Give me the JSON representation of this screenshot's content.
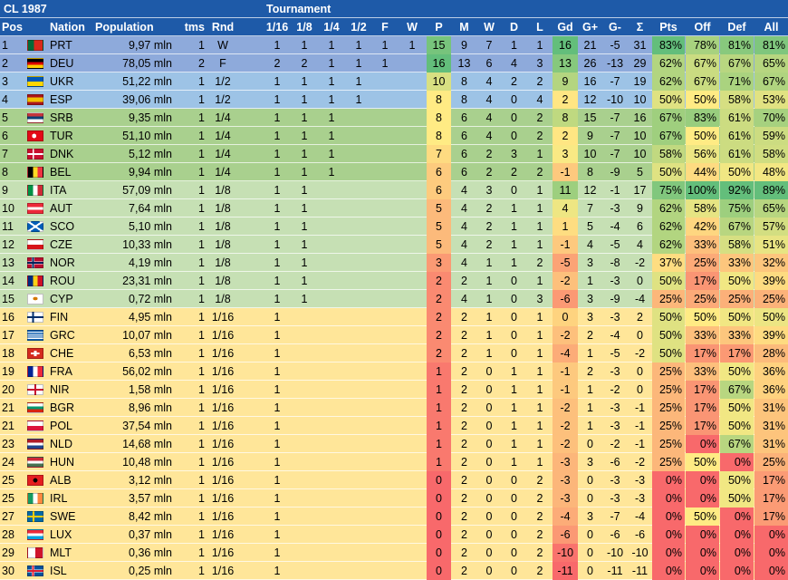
{
  "title": "CL 1987",
  "tournament_label": "Tournament",
  "columns": {
    "pos": "Pos",
    "nation": "Nation",
    "population": "Population",
    "tms": "tms",
    "rnd": "Rnd",
    "r16": "1/16",
    "r8": "1/8",
    "r4": "1/4",
    "r2": "1/2",
    "f": "F",
    "w": "W",
    "p": "P",
    "m": "M",
    "wins": "W",
    "d": "D",
    "l": "L",
    "gd": "Gd",
    "gp": "G+",
    "gm": "G-",
    "sigma": "Σ",
    "pts": "Pts",
    "off": "Off",
    "def": "Def",
    "all": "All"
  },
  "colors": {
    "header": "#1e5aa8",
    "tier_final": "#8eaadb",
    "tier_semi": "#9dc3e6",
    "tier_quarter": "#a9d08e",
    "tier_eighth": "#c6e0b4",
    "tier_sixteenth": "#ffe699",
    "good": "#63be7b",
    "mid": "#ffeb84",
    "bad": "#f8696b"
  },
  "rows": [
    {
      "pos": "1",
      "nation": "PRT",
      "population": "9,97 mln",
      "tms": "1",
      "rnd": "W",
      "r16": "1",
      "r8": "1",
      "r4": "1",
      "r2": "1",
      "f": "1",
      "w": "1",
      "p": "15",
      "m": "9",
      "wins": "7",
      "d": "1",
      "l": "1",
      "gd": "16",
      "gp": "21",
      "gm": "-5",
      "sigma": "31",
      "pts": "83%",
      "off": "78%",
      "def": "81%",
      "all": "81%",
      "flag": "PRT"
    },
    {
      "pos": "2",
      "nation": "DEU",
      "population": "78,05 mln",
      "tms": "2",
      "rnd": "F",
      "r16": "2",
      "r8": "2",
      "r4": "1",
      "r2": "1",
      "f": "1",
      "w": "",
      "p": "16",
      "m": "13",
      "wins": "6",
      "d": "4",
      "l": "3",
      "gd": "13",
      "gp": "26",
      "gm": "-13",
      "sigma": "29",
      "pts": "62%",
      "off": "67%",
      "def": "67%",
      "all": "65%",
      "flag": "DEU"
    },
    {
      "pos": "3",
      "nation": "UKR",
      "population": "51,22 mln",
      "tms": "1",
      "rnd": "1/2",
      "r16": "1",
      "r8": "1",
      "r4": "1",
      "r2": "1",
      "f": "",
      "w": "",
      "p": "10",
      "m": "8",
      "wins": "4",
      "d": "2",
      "l": "2",
      "gd": "9",
      "gp": "16",
      "gm": "-7",
      "sigma": "19",
      "pts": "62%",
      "off": "67%",
      "def": "71%",
      "all": "67%",
      "flag": "UKR"
    },
    {
      "pos": "4",
      "nation": "ESP",
      "population": "39,06 mln",
      "tms": "1",
      "rnd": "1/2",
      "r16": "1",
      "r8": "1",
      "r4": "1",
      "r2": "1",
      "f": "",
      "w": "",
      "p": "8",
      "m": "8",
      "wins": "4",
      "d": "0",
      "l": "4",
      "gd": "2",
      "gp": "12",
      "gm": "-10",
      "sigma": "10",
      "pts": "50%",
      "off": "50%",
      "def": "58%",
      "all": "53%",
      "flag": "ESP"
    },
    {
      "pos": "5",
      "nation": "SRB",
      "population": "9,35 mln",
      "tms": "1",
      "rnd": "1/4",
      "r16": "1",
      "r8": "1",
      "r4": "1",
      "r2": "",
      "f": "",
      "w": "",
      "p": "8",
      "m": "6",
      "wins": "4",
      "d": "0",
      "l": "2",
      "gd": "8",
      "gp": "15",
      "gm": "-7",
      "sigma": "16",
      "pts": "67%",
      "off": "83%",
      "def": "61%",
      "all": "70%",
      "flag": "SRB"
    },
    {
      "pos": "6",
      "nation": "TUR",
      "population": "51,10 mln",
      "tms": "1",
      "rnd": "1/4",
      "r16": "1",
      "r8": "1",
      "r4": "1",
      "r2": "",
      "f": "",
      "w": "",
      "p": "8",
      "m": "6",
      "wins": "4",
      "d": "0",
      "l": "2",
      "gd": "2",
      "gp": "9",
      "gm": "-7",
      "sigma": "10",
      "pts": "67%",
      "off": "50%",
      "def": "61%",
      "all": "59%",
      "flag": "TUR"
    },
    {
      "pos": "7",
      "nation": "DNK",
      "population": "5,12 mln",
      "tms": "1",
      "rnd": "1/4",
      "r16": "1",
      "r8": "1",
      "r4": "1",
      "r2": "",
      "f": "",
      "w": "",
      "p": "7",
      "m": "6",
      "wins": "2",
      "d": "3",
      "l": "1",
      "gd": "3",
      "gp": "10",
      "gm": "-7",
      "sigma": "10",
      "pts": "58%",
      "off": "56%",
      "def": "61%",
      "all": "58%",
      "flag": "DNK"
    },
    {
      "pos": "8",
      "nation": "BEL",
      "population": "9,94 mln",
      "tms": "1",
      "rnd": "1/4",
      "r16": "1",
      "r8": "1",
      "r4": "1",
      "r2": "",
      "f": "",
      "w": "",
      "p": "6",
      "m": "6",
      "wins": "2",
      "d": "2",
      "l": "2",
      "gd": "-1",
      "gp": "8",
      "gm": "-9",
      "sigma": "5",
      "pts": "50%",
      "off": "44%",
      "def": "50%",
      "all": "48%",
      "flag": "BEL"
    },
    {
      "pos": "9",
      "nation": "ITA",
      "population": "57,09 mln",
      "tms": "1",
      "rnd": "1/8",
      "r16": "1",
      "r8": "1",
      "r4": "",
      "r2": "",
      "f": "",
      "w": "",
      "p": "6",
      "m": "4",
      "wins": "3",
      "d": "0",
      "l": "1",
      "gd": "11",
      "gp": "12",
      "gm": "-1",
      "sigma": "17",
      "pts": "75%",
      "off": "100%",
      "def": "92%",
      "all": "89%",
      "flag": "ITA"
    },
    {
      "pos": "10",
      "nation": "AUT",
      "population": "7,64 mln",
      "tms": "1",
      "rnd": "1/8",
      "r16": "1",
      "r8": "1",
      "r4": "",
      "r2": "",
      "f": "",
      "w": "",
      "p": "5",
      "m": "4",
      "wins": "2",
      "d": "1",
      "l": "1",
      "gd": "4",
      "gp": "7",
      "gm": "-3",
      "sigma": "9",
      "pts": "62%",
      "off": "58%",
      "def": "75%",
      "all": "65%",
      "flag": "AUT"
    },
    {
      "pos": "11",
      "nation": "SCO",
      "population": "5,10 mln",
      "tms": "1",
      "rnd": "1/8",
      "r16": "1",
      "r8": "1",
      "r4": "",
      "r2": "",
      "f": "",
      "w": "",
      "p": "5",
      "m": "4",
      "wins": "2",
      "d": "1",
      "l": "1",
      "gd": "1",
      "gp": "5",
      "gm": "-4",
      "sigma": "6",
      "pts": "62%",
      "off": "42%",
      "def": "67%",
      "all": "57%",
      "flag": "SCO"
    },
    {
      "pos": "12",
      "nation": "CZE",
      "population": "10,33 mln",
      "tms": "1",
      "rnd": "1/8",
      "r16": "1",
      "r8": "1",
      "r4": "",
      "r2": "",
      "f": "",
      "w": "",
      "p": "5",
      "m": "4",
      "wins": "2",
      "d": "1",
      "l": "1",
      "gd": "-1",
      "gp": "4",
      "gm": "-5",
      "sigma": "4",
      "pts": "62%",
      "off": "33%",
      "def": "58%",
      "all": "51%",
      "flag": "CZE"
    },
    {
      "pos": "13",
      "nation": "NOR",
      "population": "4,19 mln",
      "tms": "1",
      "rnd": "1/8",
      "r16": "1",
      "r8": "1",
      "r4": "",
      "r2": "",
      "f": "",
      "w": "",
      "p": "3",
      "m": "4",
      "wins": "1",
      "d": "1",
      "l": "2",
      "gd": "-5",
      "gp": "3",
      "gm": "-8",
      "sigma": "-2",
      "pts": "37%",
      "off": "25%",
      "def": "33%",
      "all": "32%",
      "flag": "NOR"
    },
    {
      "pos": "14",
      "nation": "ROU",
      "population": "23,31 mln",
      "tms": "1",
      "rnd": "1/8",
      "r16": "1",
      "r8": "1",
      "r4": "",
      "r2": "",
      "f": "",
      "w": "",
      "p": "2",
      "m": "2",
      "wins": "1",
      "d": "0",
      "l": "1",
      "gd": "-2",
      "gp": "1",
      "gm": "-3",
      "sigma": "0",
      "pts": "50%",
      "off": "17%",
      "def": "50%",
      "all": "39%",
      "flag": "ROU"
    },
    {
      "pos": "15",
      "nation": "CYP",
      "population": "0,72 mln",
      "tms": "1",
      "rnd": "1/8",
      "r16": "1",
      "r8": "1",
      "r4": "",
      "r2": "",
      "f": "",
      "w": "",
      "p": "2",
      "m": "4",
      "wins": "1",
      "d": "0",
      "l": "3",
      "gd": "-6",
      "gp": "3",
      "gm": "-9",
      "sigma": "-4",
      "pts": "25%",
      "off": "25%",
      "def": "25%",
      "all": "25%",
      "flag": "CYP"
    },
    {
      "pos": "16",
      "nation": "FIN",
      "population": "4,95 mln",
      "tms": "1",
      "rnd": "1/16",
      "r16": "1",
      "r8": "",
      "r4": "",
      "r2": "",
      "f": "",
      "w": "",
      "p": "2",
      "m": "2",
      "wins": "1",
      "d": "0",
      "l": "1",
      "gd": "0",
      "gp": "3",
      "gm": "-3",
      "sigma": "2",
      "pts": "50%",
      "off": "50%",
      "def": "50%",
      "all": "50%",
      "flag": "FIN"
    },
    {
      "pos": "17",
      "nation": "GRC",
      "population": "10,07 mln",
      "tms": "1",
      "rnd": "1/16",
      "r16": "1",
      "r8": "",
      "r4": "",
      "r2": "",
      "f": "",
      "w": "",
      "p": "2",
      "m": "2",
      "wins": "1",
      "d": "0",
      "l": "1",
      "gd": "-2",
      "gp": "2",
      "gm": "-4",
      "sigma": "0",
      "pts": "50%",
      "off": "33%",
      "def": "33%",
      "all": "39%",
      "flag": "GRC"
    },
    {
      "pos": "18",
      "nation": "CHE",
      "population": "6,53 mln",
      "tms": "1",
      "rnd": "1/16",
      "r16": "1",
      "r8": "",
      "r4": "",
      "r2": "",
      "f": "",
      "w": "",
      "p": "2",
      "m": "2",
      "wins": "1",
      "d": "0",
      "l": "1",
      "gd": "-4",
      "gp": "1",
      "gm": "-5",
      "sigma": "-2",
      "pts": "50%",
      "off": "17%",
      "def": "17%",
      "all": "28%",
      "flag": "CHE"
    },
    {
      "pos": "19",
      "nation": "FRA",
      "population": "56,02 mln",
      "tms": "1",
      "rnd": "1/16",
      "r16": "1",
      "r8": "",
      "r4": "",
      "r2": "",
      "f": "",
      "w": "",
      "p": "1",
      "m": "2",
      "wins": "0",
      "d": "1",
      "l": "1",
      "gd": "-1",
      "gp": "2",
      "gm": "-3",
      "sigma": "0",
      "pts": "25%",
      "off": "33%",
      "def": "50%",
      "all": "36%",
      "flag": "FRA"
    },
    {
      "pos": "20",
      "nation": "NIR",
      "population": "1,58 mln",
      "tms": "1",
      "rnd": "1/16",
      "r16": "1",
      "r8": "",
      "r4": "",
      "r2": "",
      "f": "",
      "w": "",
      "p": "1",
      "m": "2",
      "wins": "0",
      "d": "1",
      "l": "1",
      "gd": "-1",
      "gp": "1",
      "gm": "-2",
      "sigma": "0",
      "pts": "25%",
      "off": "17%",
      "def": "67%",
      "all": "36%",
      "flag": "NIR"
    },
    {
      "pos": "21",
      "nation": "BGR",
      "population": "8,96 mln",
      "tms": "1",
      "rnd": "1/16",
      "r16": "1",
      "r8": "",
      "r4": "",
      "r2": "",
      "f": "",
      "w": "",
      "p": "1",
      "m": "2",
      "wins": "0",
      "d": "1",
      "l": "1",
      "gd": "-2",
      "gp": "1",
      "gm": "-3",
      "sigma": "-1",
      "pts": "25%",
      "off": "17%",
      "def": "50%",
      "all": "31%",
      "flag": "BGR"
    },
    {
      "pos": "21",
      "nation": "POL",
      "population": "37,54 mln",
      "tms": "1",
      "rnd": "1/16",
      "r16": "1",
      "r8": "",
      "r4": "",
      "r2": "",
      "f": "",
      "w": "",
      "p": "1",
      "m": "2",
      "wins": "0",
      "d": "1",
      "l": "1",
      "gd": "-2",
      "gp": "1",
      "gm": "-3",
      "sigma": "-1",
      "pts": "25%",
      "off": "17%",
      "def": "50%",
      "all": "31%",
      "flag": "POL"
    },
    {
      "pos": "23",
      "nation": "NLD",
      "population": "14,68 mln",
      "tms": "1",
      "rnd": "1/16",
      "r16": "1",
      "r8": "",
      "r4": "",
      "r2": "",
      "f": "",
      "w": "",
      "p": "1",
      "m": "2",
      "wins": "0",
      "d": "1",
      "l": "1",
      "gd": "-2",
      "gp": "0",
      "gm": "-2",
      "sigma": "-1",
      "pts": "25%",
      "off": "0%",
      "def": "67%",
      "all": "31%",
      "flag": "NLD"
    },
    {
      "pos": "24",
      "nation": "HUN",
      "population": "10,48 mln",
      "tms": "1",
      "rnd": "1/16",
      "r16": "1",
      "r8": "",
      "r4": "",
      "r2": "",
      "f": "",
      "w": "",
      "p": "1",
      "m": "2",
      "wins": "0",
      "d": "1",
      "l": "1",
      "gd": "-3",
      "gp": "3",
      "gm": "-6",
      "sigma": "-2",
      "pts": "25%",
      "off": "50%",
      "def": "0%",
      "all": "25%",
      "flag": "HUN"
    },
    {
      "pos": "25",
      "nation": "ALB",
      "population": "3,12 mln",
      "tms": "1",
      "rnd": "1/16",
      "r16": "1",
      "r8": "",
      "r4": "",
      "r2": "",
      "f": "",
      "w": "",
      "p": "0",
      "m": "2",
      "wins": "0",
      "d": "0",
      "l": "2",
      "gd": "-3",
      "gp": "0",
      "gm": "-3",
      "sigma": "-3",
      "pts": "0%",
      "off": "0%",
      "def": "50%",
      "all": "17%",
      "flag": "ALB"
    },
    {
      "pos": "25",
      "nation": "IRL",
      "population": "3,57 mln",
      "tms": "1",
      "rnd": "1/16",
      "r16": "1",
      "r8": "",
      "r4": "",
      "r2": "",
      "f": "",
      "w": "",
      "p": "0",
      "m": "2",
      "wins": "0",
      "d": "0",
      "l": "2",
      "gd": "-3",
      "gp": "0",
      "gm": "-3",
      "sigma": "-3",
      "pts": "0%",
      "off": "0%",
      "def": "50%",
      "all": "17%",
      "flag": "IRL"
    },
    {
      "pos": "27",
      "nation": "SWE",
      "population": "8,42 mln",
      "tms": "1",
      "rnd": "1/16",
      "r16": "1",
      "r8": "",
      "r4": "",
      "r2": "",
      "f": "",
      "w": "",
      "p": "0",
      "m": "2",
      "wins": "0",
      "d": "0",
      "l": "2",
      "gd": "-4",
      "gp": "3",
      "gm": "-7",
      "sigma": "-4",
      "pts": "0%",
      "off": "50%",
      "def": "0%",
      "all": "17%",
      "flag": "SWE"
    },
    {
      "pos": "28",
      "nation": "LUX",
      "population": "0,37 mln",
      "tms": "1",
      "rnd": "1/16",
      "r16": "1",
      "r8": "",
      "r4": "",
      "r2": "",
      "f": "",
      "w": "",
      "p": "0",
      "m": "2",
      "wins": "0",
      "d": "0",
      "l": "2",
      "gd": "-6",
      "gp": "0",
      "gm": "-6",
      "sigma": "-6",
      "pts": "0%",
      "off": "0%",
      "def": "0%",
      "all": "0%",
      "flag": "LUX"
    },
    {
      "pos": "29",
      "nation": "MLT",
      "population": "0,36 mln",
      "tms": "1",
      "rnd": "1/16",
      "r16": "1",
      "r8": "",
      "r4": "",
      "r2": "",
      "f": "",
      "w": "",
      "p": "0",
      "m": "2",
      "wins": "0",
      "d": "0",
      "l": "2",
      "gd": "-10",
      "gp": "0",
      "gm": "-10",
      "sigma": "-10",
      "pts": "0%",
      "off": "0%",
      "def": "0%",
      "all": "0%",
      "flag": "MLT"
    },
    {
      "pos": "30",
      "nation": "ISL",
      "population": "0,25 mln",
      "tms": "1",
      "rnd": "1/16",
      "r16": "1",
      "r8": "",
      "r4": "",
      "r2": "",
      "f": "",
      "w": "",
      "p": "0",
      "m": "2",
      "wins": "0",
      "d": "0",
      "l": "2",
      "gd": "-11",
      "gp": "0",
      "gm": "-11",
      "sigma": "-11",
      "pts": "0%",
      "off": "0%",
      "def": "0%",
      "all": "0%",
      "flag": "ISL"
    }
  ]
}
